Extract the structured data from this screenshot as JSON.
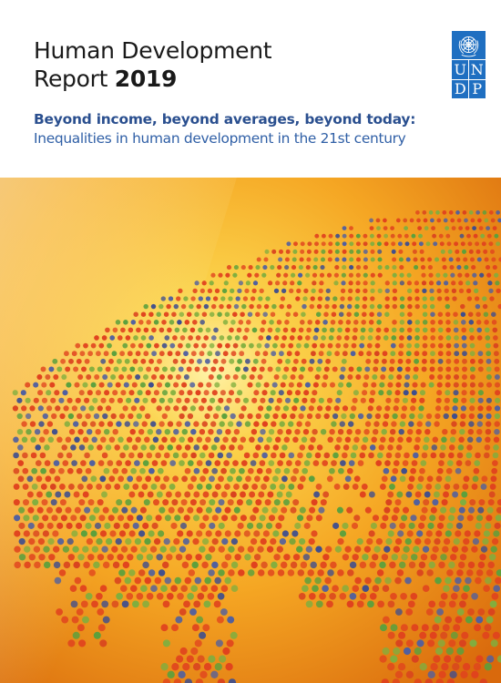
{
  "report": {
    "title_line1": "Human Development",
    "title_line2_prefix": "Report",
    "title_year": "2019",
    "subtitle_bold": "Beyond income, beyond averages, beyond today:",
    "subtitle_regular": "Inequalities in human development in the 21st century"
  },
  "logo": {
    "icon": "un-emblem-icon",
    "letters": [
      "U",
      "N",
      "D",
      "P"
    ]
  },
  "cover_art": {
    "icon": "dotted-globe-illustration",
    "dot_colors": [
      "#e0421e",
      "#d9431f",
      "#7fae3f",
      "#5aa03d",
      "#4f5fa0",
      "#3d4d8f"
    ],
    "background_colors": [
      "#fbd24a",
      "#f5a623",
      "#e07a12"
    ]
  },
  "colors": {
    "title": "#1a1a1a",
    "subtitle_bold": "#2a4f8f",
    "subtitle_regular": "#2f5fa6",
    "logo_blue": "#1f6fc1"
  }
}
